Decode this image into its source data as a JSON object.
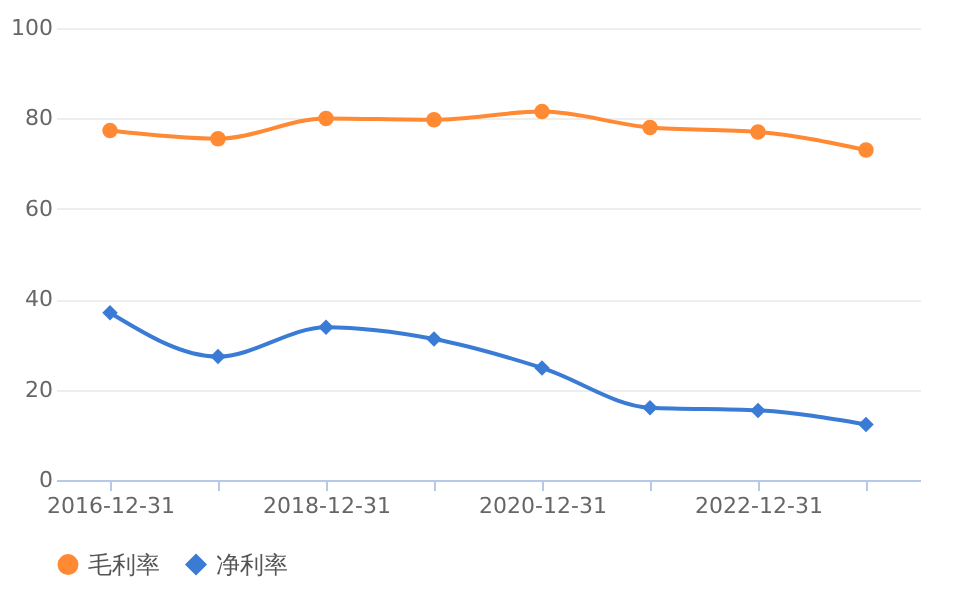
{
  "chart_data": {
    "type": "line",
    "categories": [
      "2016-12-31",
      null,
      "2018-12-31",
      null,
      "2020-12-31",
      null,
      "2022-12-31",
      null
    ],
    "series": [
      {
        "name": "毛利率",
        "color": "#ff8a33",
        "marker": "circle",
        "values": [
          77.3,
          75.5,
          80,
          79.7,
          81.5,
          78,
          77,
          73
        ]
      },
      {
        "name": "净利率",
        "color": "#3a7bd5",
        "marker": "diamond",
        "values": [
          37,
          27.3,
          33.8,
          31.2,
          24.8,
          16,
          15.4,
          12.3
        ]
      }
    ],
    "ylim": [
      0,
      100
    ],
    "yticks": [
      0,
      20,
      40,
      60,
      80,
      100
    ],
    "grid": "y",
    "legend": "bottom",
    "line_style": "solid"
  }
}
